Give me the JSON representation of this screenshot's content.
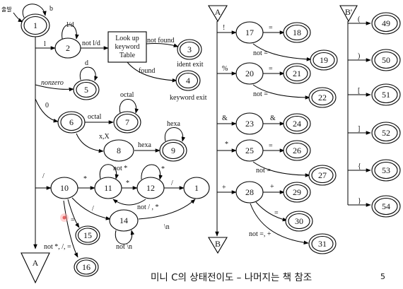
{
  "start_label": "출발",
  "table_box": [
    "Look up",
    "keyword",
    "Table"
  ],
  "connectors": {
    "A": "A",
    "B": "B",
    "Bp": "B'"
  },
  "states": {
    "s1": "1",
    "s2": "2",
    "s3": "3",
    "s4": "4",
    "s5": "5",
    "s6": "6",
    "s7": "7",
    "s8": "8",
    "s9": "9",
    "s10": "10",
    "s11": "11",
    "s12": "12",
    "s1b": "1",
    "s14": "14",
    "s15": "15",
    "s16": "16",
    "s17": "17",
    "s18": "18",
    "s19": "19",
    "s20": "20",
    "s21": "21",
    "s22": "22",
    "s23": "23",
    "s24": "24",
    "s25": "25",
    "s26": "26",
    "s27": "27",
    "s28": "28",
    "s29": "29",
    "s30": "30",
    "s31": "31",
    "s49": "49",
    "s50": "50",
    "s51": "51",
    "s52": "52",
    "s53": "53",
    "s54": "54"
  },
  "edge_labels": {
    "loop1": "b",
    "e1_2": "l",
    "loop2": "l/d",
    "e2_t": "not l/d",
    "t_3": "not found",
    "t_4": "found",
    "nonzero": "nonzero",
    "loop5": "d",
    "zero": "0",
    "octal_6_7": "octal",
    "loop7": "octal",
    "xX": "x,X",
    "hexa_8_9": "hexa",
    "loop9": "hexa",
    "slash": "/",
    "e10_11": "*",
    "loop11": "not *",
    "e11_12": "*",
    "loop12": "*",
    "e12_1": "/",
    "back12_11": "not / , *",
    "e10_14": "/",
    "e14_1": "\\n",
    "loop14": "not \\n",
    "e10_15": "=",
    "e10_16": "not *, /, =",
    "bang": "!",
    "e17_18": "=",
    "e17_19": "not =",
    "pct": "%",
    "e20_21": "=",
    "e20_22": "not =",
    "amp": "&",
    "e23_24": "&",
    "star": "*",
    "e25_26": "=",
    "e25_27": "not =",
    "plus": "+",
    "e28_29": "+",
    "e28_30": "=",
    "e28_31": "not =, +",
    "lparen": "(",
    "rparen": ")",
    "lbracket": "[",
    "rbracket": "]",
    "lbrace": "{",
    "rbrace": "}"
  },
  "exit_labels": {
    "ident": "ident exit",
    "keyword": "keyword exit"
  },
  "caption": "미니 C의 상태전이도 – 나머지는 책 참조",
  "page_number": "5"
}
